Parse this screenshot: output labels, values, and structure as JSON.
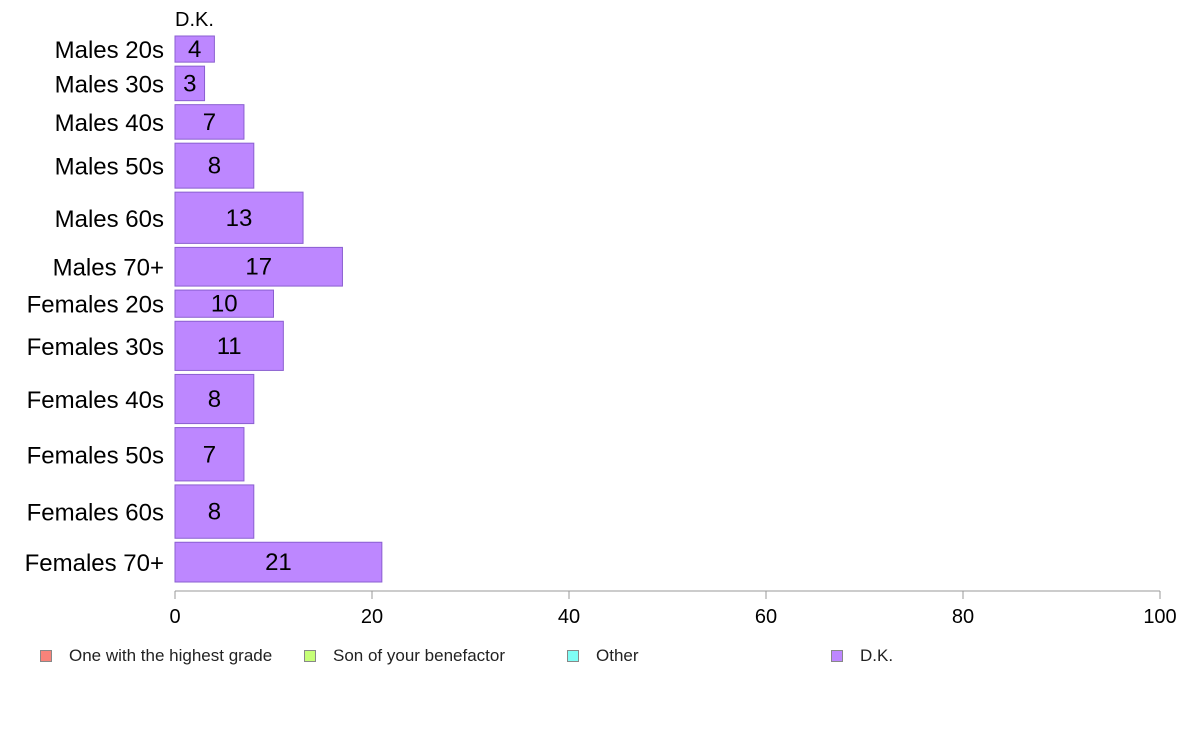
{
  "chart_data": {
    "type": "bar",
    "orientation": "horizontal",
    "series_title": "D.K.",
    "categories": [
      "Males 20s",
      "Males 30s",
      "Males 40s",
      "Males 50s",
      "Males 60s",
      "Males 70+",
      "Females 20s",
      "Females 30s",
      "Females 40s",
      "Females 50s",
      "Females 60s",
      "Females 70+"
    ],
    "values": [
      4,
      3,
      7,
      8,
      13,
      17,
      10,
      11,
      8,
      7,
      8,
      21
    ],
    "weights": [
      25,
      33,
      33,
      43,
      49,
      37,
      26,
      47,
      47,
      51,
      51,
      38
    ],
    "xlim": [
      0,
      100
    ],
    "xticks": [
      "0",
      "20",
      "40",
      "60",
      "80",
      "100"
    ],
    "grid": false,
    "legend": {
      "placement": "bottom",
      "items": [
        {
          "label": "One with the highest grade",
          "color": "#f8837a"
        },
        {
          "label": "Son of your benefactor",
          "color": "#c6ff77"
        },
        {
          "label": "Other",
          "color": "#7ffdf5"
        },
        {
          "label": "D.K.",
          "color": "#bd87ff"
        }
      ]
    },
    "bar_color": "#bd87ff",
    "bar_stroke": "#8a5fd0"
  }
}
